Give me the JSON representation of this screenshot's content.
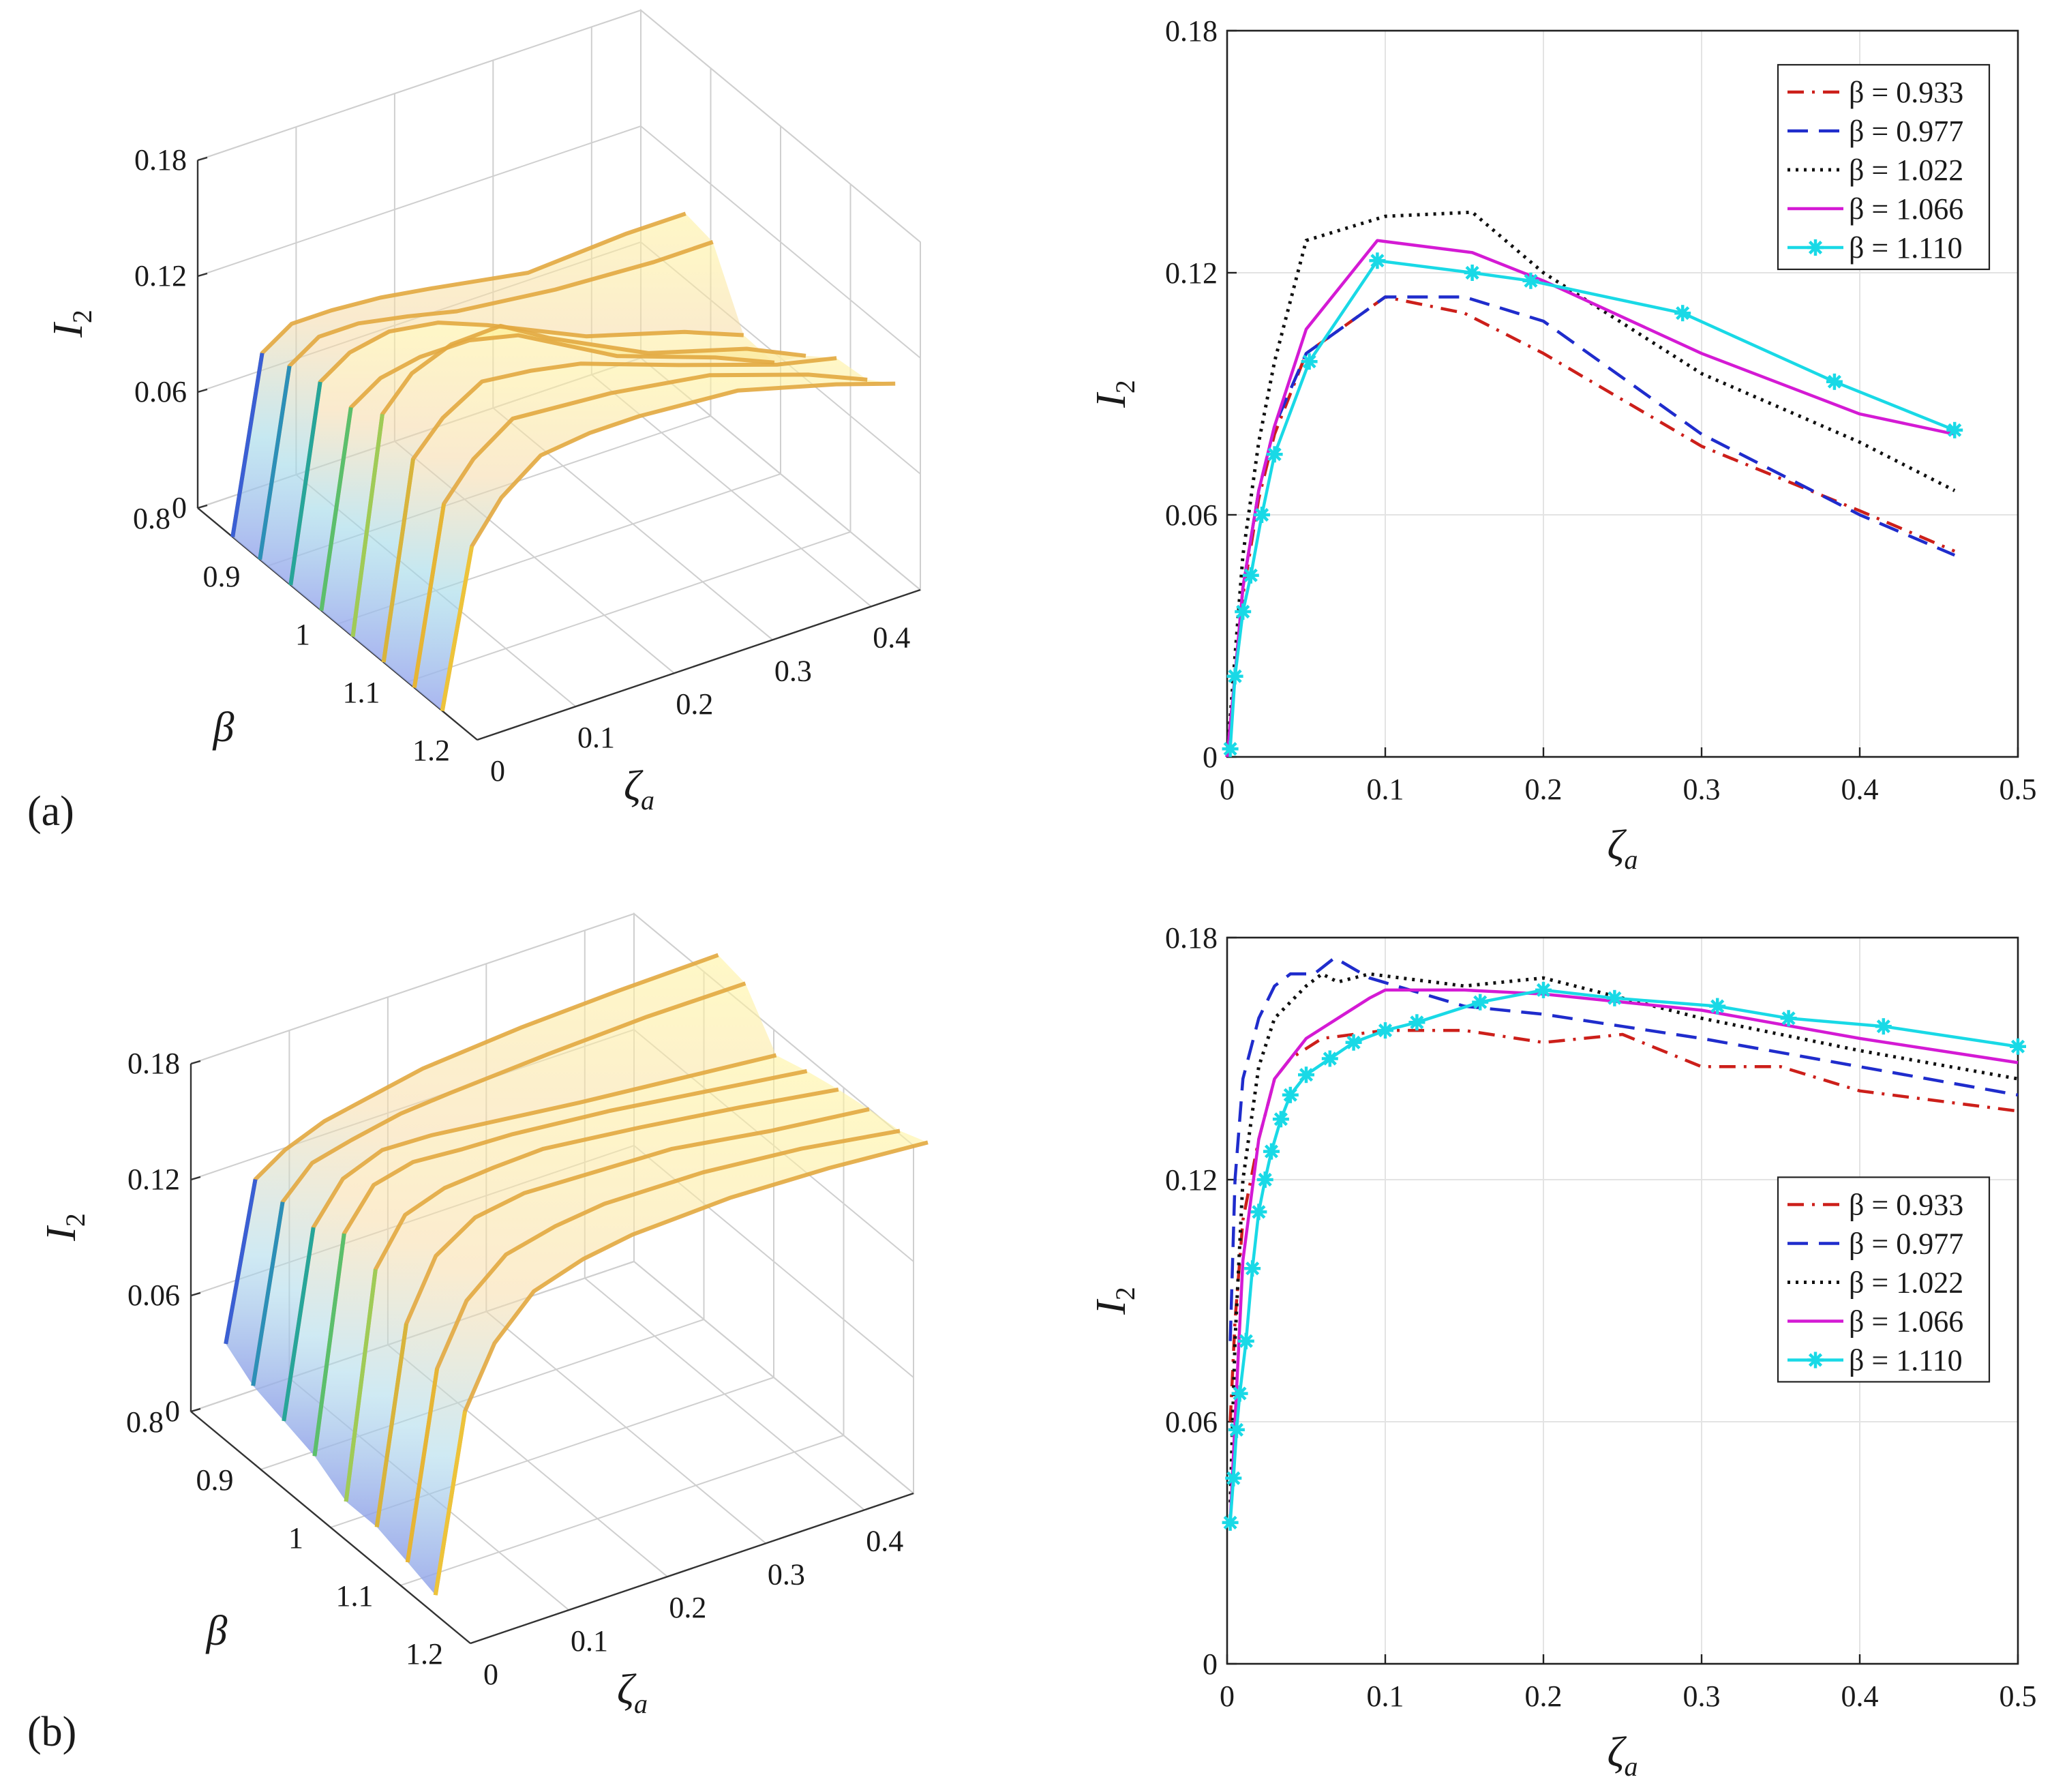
{
  "figure": {
    "panel_labels": [
      "(a)",
      "(b)"
    ]
  },
  "chart_data": [
    {
      "id": "a-3d",
      "type": "surface",
      "panel": "(a)",
      "xlabel": "β",
      "ylabel": "ζ",
      "ylabel_sub": "a",
      "zlabel": "I",
      "zlabel_sub": "2",
      "xlim": [
        0.8,
        1.2
      ],
      "ylim": [
        0,
        0.45
      ],
      "zlim": [
        0,
        0.18
      ],
      "x_ticks": [
        "0.8",
        "0.9",
        "1",
        "1.1",
        "1.2"
      ],
      "y_ticks": [
        "0",
        "0.1",
        "0.2",
        "0.3",
        "0.4"
      ],
      "z_ticks": [
        "0",
        "0.06",
        "0.12",
        "0.18"
      ],
      "beta": [
        0.85,
        0.889,
        0.933,
        0.977,
        1.022,
        1.066,
        1.11,
        1.15
      ],
      "zeta": [
        0,
        0.03,
        0.06,
        0.1,
        0.15,
        0.2,
        0.3,
        0.4,
        0.46
      ],
      "series": [
        {
          "name": "0.85",
          "values": [
            0,
            0.09,
            0.1,
            0.1,
            0.098,
            0.094,
            0.085,
            0.088,
            0.088
          ]
        },
        {
          "name": "0.889",
          "values": [
            0,
            0.095,
            0.105,
            0.105,
            0.1,
            0.094,
            0.088,
            0.085,
            0.085
          ]
        },
        {
          "name": "0.933",
          "values": [
            0,
            0.1,
            0.11,
            0.114,
            0.11,
            0.1,
            0.077,
            0.062,
            0.05
          ]
        },
        {
          "name": "0.977",
          "values": [
            0,
            0.1,
            0.11,
            0.114,
            0.114,
            0.108,
            0.08,
            0.062,
            0.049
          ]
        },
        {
          "name": "1.022",
          "values": [
            0,
            0.11,
            0.126,
            0.134,
            0.135,
            0.12,
            0.095,
            0.08,
            0.066
          ]
        },
        {
          "name": "1.066",
          "values": [
            0,
            0.1,
            0.116,
            0.128,
            0.125,
            0.12,
            0.102,
            0.085,
            0.078
          ]
        },
        {
          "name": "1.11",
          "values": [
            0,
            0.09,
            0.108,
            0.122,
            0.12,
            0.118,
            0.11,
            0.093,
            0.08
          ]
        },
        {
          "name": "1.15",
          "values": [
            0,
            0.08,
            0.1,
            0.115,
            0.118,
            0.118,
            0.114,
            0.1,
            0.09
          ]
        }
      ]
    },
    {
      "id": "a-2d",
      "type": "line",
      "panel": "(a)",
      "title": "",
      "xlabel": "ζ",
      "xlabel_sub": "a",
      "ylabel": "I",
      "ylabel_sub": "2",
      "xlim": [
        0,
        0.5
      ],
      "ylim": [
        0,
        0.18
      ],
      "x_ticks": [
        "0",
        "0.1",
        "0.2",
        "0.3",
        "0.4",
        "0.5"
      ],
      "y_ticks": [
        "0",
        "0.06",
        "0.12",
        "0.18"
      ],
      "grid": true,
      "legend_position": "top-right",
      "series": [
        {
          "name": "β = 0.933",
          "color": "#cc1f1a",
          "style": "dashdot",
          "marker": "none",
          "x": [
            0,
            0.005,
            0.01,
            0.02,
            0.03,
            0.05,
            0.1,
            0.15,
            0.2,
            0.3,
            0.4,
            0.46
          ],
          "y": [
            0,
            0.02,
            0.04,
            0.064,
            0.08,
            0.1,
            0.114,
            0.11,
            0.1,
            0.077,
            0.061,
            0.051
          ]
        },
        {
          "name": "β = 0.977",
          "color": "#1f2ccc",
          "style": "dashed",
          "marker": "none",
          "x": [
            0,
            0.005,
            0.01,
            0.02,
            0.03,
            0.05,
            0.1,
            0.15,
            0.2,
            0.3,
            0.4,
            0.46
          ],
          "y": [
            0,
            0.02,
            0.042,
            0.066,
            0.082,
            0.1,
            0.114,
            0.114,
            0.108,
            0.08,
            0.06,
            0.05
          ]
        },
        {
          "name": "β = 1.022",
          "color": "#111111",
          "style": "dotted",
          "marker": "none",
          "x": [
            0,
            0.005,
            0.01,
            0.02,
            0.03,
            0.05,
            0.1,
            0.155,
            0.2,
            0.3,
            0.4,
            0.46
          ],
          "y": [
            0,
            0.025,
            0.05,
            0.078,
            0.098,
            0.128,
            0.134,
            0.135,
            0.12,
            0.095,
            0.078,
            0.066
          ]
        },
        {
          "name": "β = 1.066",
          "color": "#d41ad4",
          "style": "solid",
          "marker": "none",
          "x": [
            0,
            0.005,
            0.01,
            0.02,
            0.03,
            0.05,
            0.095,
            0.155,
            0.2,
            0.3,
            0.4,
            0.46
          ],
          "y": [
            0,
            0.02,
            0.042,
            0.066,
            0.082,
            0.106,
            0.128,
            0.125,
            0.118,
            0.1,
            0.085,
            0.08
          ]
        },
        {
          "name": "β = 1.110",
          "color": "#19d9e6",
          "style": "solid",
          "marker": "asterisk",
          "x": [
            0.002,
            0.005,
            0.01,
            0.015,
            0.022,
            0.03,
            0.052,
            0.095,
            0.155,
            0.192,
            0.288,
            0.384,
            0.46
          ],
          "y": [
            0.002,
            0.02,
            0.036,
            0.045,
            0.06,
            0.075,
            0.098,
            0.123,
            0.12,
            0.118,
            0.11,
            0.093,
            0.081
          ]
        }
      ]
    },
    {
      "id": "b-3d",
      "type": "surface",
      "panel": "(b)",
      "xlabel": "β",
      "ylabel": "ζ",
      "ylabel_sub": "a",
      "zlabel": "I",
      "zlabel_sub": "2",
      "xlim": [
        0.8,
        1.2
      ],
      "ylim": [
        0,
        0.45
      ],
      "zlim": [
        0,
        0.18
      ],
      "x_ticks": [
        "0.8",
        "0.9",
        "1",
        "1.1",
        "1.2"
      ],
      "y_ticks": [
        "0",
        "0.1",
        "0.2",
        "0.3",
        "0.4"
      ],
      "z_ticks": [
        "0",
        "0.06",
        "0.12",
        "0.18"
      ],
      "beta": [
        0.85,
        0.889,
        0.933,
        0.977,
        1.022,
        1.066,
        1.11,
        1.15
      ],
      "zeta": [
        0,
        0.03,
        0.06,
        0.1,
        0.15,
        0.2,
        0.3,
        0.4,
        0.5
      ],
      "series": [
        {
          "name": "0.85",
          "values": [
            0.05,
            0.13,
            0.14,
            0.148,
            0.153,
            0.158,
            0.162,
            0.164,
            0.165
          ]
        },
        {
          "name": "0.889",
          "values": [
            0.04,
            0.13,
            0.145,
            0.15,
            0.155,
            0.157,
            0.16,
            0.162,
            0.162
          ]
        },
        {
          "name": "0.933",
          "values": [
            0.035,
            0.13,
            0.15,
            0.158,
            0.157,
            0.154,
            0.148,
            0.143,
            0.138
          ]
        },
        {
          "name": "0.977",
          "values": [
            0.03,
            0.14,
            0.16,
            0.165,
            0.163,
            0.162,
            0.157,
            0.15,
            0.143
          ]
        },
        {
          "name": "1.022",
          "values": [
            0.02,
            0.135,
            0.158,
            0.165,
            0.167,
            0.168,
            0.162,
            0.155,
            0.147
          ]
        },
        {
          "name": "1.066",
          "values": [
            0.02,
            0.12,
            0.15,
            0.163,
            0.167,
            0.166,
            0.164,
            0.156,
            0.15
          ]
        },
        {
          "name": "1.11",
          "values": [
            0.015,
            0.11,
            0.14,
            0.157,
            0.163,
            0.166,
            0.165,
            0.16,
            0.152
          ]
        },
        {
          "name": "1.15",
          "values": [
            0.01,
            0.1,
            0.13,
            0.15,
            0.158,
            0.162,
            0.164,
            0.162,
            0.158
          ]
        }
      ]
    },
    {
      "id": "b-2d",
      "type": "line",
      "panel": "(b)",
      "title": "",
      "xlabel": "ζ",
      "xlabel_sub": "a",
      "ylabel": "I",
      "ylabel_sub": "2",
      "xlim": [
        0,
        0.5
      ],
      "ylim": [
        0,
        0.18
      ],
      "x_ticks": [
        "0",
        "0.1",
        "0.2",
        "0.3",
        "0.4",
        "0.5"
      ],
      "y_ticks": [
        "0",
        "0.06",
        "0.12",
        "0.18"
      ],
      "grid": true,
      "legend_position": "center-right",
      "series": [
        {
          "name": "β = 0.933",
          "color": "#cc1f1a",
          "style": "dashdot",
          "marker": "none",
          "x": [
            0.002,
            0.005,
            0.01,
            0.02,
            0.03,
            0.04,
            0.06,
            0.1,
            0.15,
            0.2,
            0.25,
            0.3,
            0.35,
            0.4,
            0.5
          ],
          "y": [
            0.06,
            0.085,
            0.11,
            0.13,
            0.145,
            0.15,
            0.155,
            0.157,
            0.157,
            0.154,
            0.156,
            0.148,
            0.148,
            0.142,
            0.137
          ]
        },
        {
          "name": "β = 0.977",
          "color": "#1f2ccc",
          "style": "dashed",
          "marker": "none",
          "x": [
            0.002,
            0.005,
            0.01,
            0.02,
            0.03,
            0.04,
            0.055,
            0.068,
            0.09,
            0.15,
            0.2,
            0.25,
            0.3,
            0.4,
            0.5
          ],
          "y": [
            0.08,
            0.12,
            0.145,
            0.16,
            0.168,
            0.171,
            0.171,
            0.175,
            0.17,
            0.163,
            0.161,
            0.158,
            0.155,
            0.148,
            0.141
          ]
        },
        {
          "name": "β = 1.022",
          "color": "#111111",
          "style": "dotted",
          "marker": "none",
          "x": [
            0.002,
            0.005,
            0.01,
            0.02,
            0.03,
            0.05,
            0.06,
            0.07,
            0.09,
            0.15,
            0.2,
            0.3,
            0.4,
            0.5
          ],
          "y": [
            0.04,
            0.08,
            0.12,
            0.148,
            0.16,
            0.168,
            0.171,
            0.169,
            0.171,
            0.168,
            0.17,
            0.16,
            0.152,
            0.145
          ]
        },
        {
          "name": "β = 1.066",
          "color": "#d41ad4",
          "style": "solid",
          "marker": "none",
          "x": [
            0.002,
            0.005,
            0.01,
            0.02,
            0.03,
            0.05,
            0.07,
            0.09,
            0.1,
            0.15,
            0.2,
            0.3,
            0.4,
            0.5
          ],
          "y": [
            0.035,
            0.06,
            0.1,
            0.13,
            0.145,
            0.155,
            0.16,
            0.165,
            0.167,
            0.167,
            0.166,
            0.162,
            0.155,
            0.149
          ]
        },
        {
          "name": "β = 1.110",
          "color": "#19d9e6",
          "style": "solid",
          "marker": "asterisk",
          "x": [
            0.002,
            0.004,
            0.006,
            0.008,
            0.012,
            0.016,
            0.02,
            0.024,
            0.028,
            0.034,
            0.04,
            0.05,
            0.065,
            0.08,
            0.1,
            0.12,
            0.16,
            0.2,
            0.245,
            0.31,
            0.355,
            0.415,
            0.5
          ],
          "y": [
            0.035,
            0.046,
            0.058,
            0.067,
            0.08,
            0.098,
            0.112,
            0.12,
            0.127,
            0.135,
            0.141,
            0.146,
            0.15,
            0.154,
            0.157,
            0.159,
            0.164,
            0.167,
            0.165,
            0.163,
            0.16,
            0.158,
            0.153
          ]
        }
      ]
    }
  ]
}
